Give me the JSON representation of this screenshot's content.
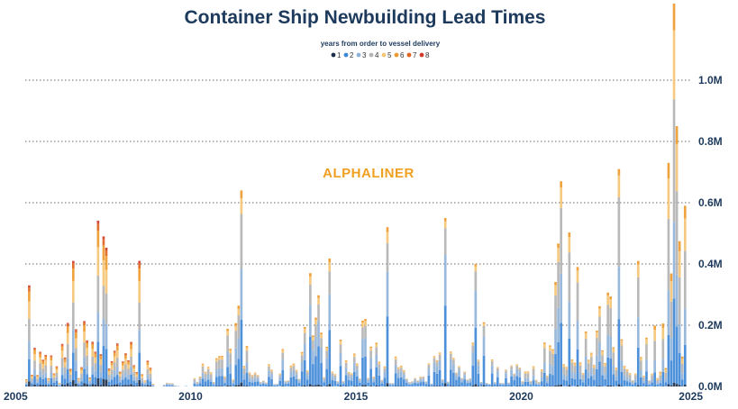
{
  "chart_data": {
    "type": "bar",
    "stacked": true,
    "title": "Container Ship Newbuilding Lead Times",
    "legend_title": "years from order to vessel delivery",
    "legend_position": "top-center",
    "watermark": "ALPHALINER",
    "xlim": [
      2005,
      2025
    ],
    "x_ticks": [
      "2005",
      "2010",
      "2015",
      "2020",
      "2025"
    ],
    "ylim": [
      0,
      1.2
    ],
    "y_unit": "M",
    "y_ticks": [
      "0.0M",
      "0.2M",
      "0.4M",
      "0.6M",
      "0.8M",
      "1.0M"
    ],
    "grid": "horizontal dotted",
    "series": [
      {
        "name": "1",
        "color": "#1a2e4a"
      },
      {
        "name": "2",
        "color": "#3f88d8"
      },
      {
        "name": "3",
        "color": "#8fb2d9"
      },
      {
        "name": "4",
        "color": "#b3b3b3"
      },
      {
        "name": "5",
        "color": "#f5c475"
      },
      {
        "name": "6",
        "color": "#ee9a2e"
      },
      {
        "name": "7",
        "color": "#e0651f"
      },
      {
        "name": "8",
        "color": "#d23b2a"
      }
    ],
    "notable_peaks": [
      {
        "x": 2005.1,
        "total": 0.33
      },
      {
        "x": 2006.4,
        "total": 0.41
      },
      {
        "x": 2007.3,
        "total": 0.49
      },
      {
        "x": 2008.4,
        "total": 0.41
      },
      {
        "x": 2011.5,
        "total": 0.64
      },
      {
        "x": 2013.6,
        "total": 0.37
      },
      {
        "x": 2015.9,
        "total": 0.52
      },
      {
        "x": 2017.7,
        "total": 0.55
      },
      {
        "x": 2018.6,
        "total": 0.4
      },
      {
        "x": 2021.2,
        "total": 0.67
      },
      {
        "x": 2022.9,
        "total": 0.71
      },
      {
        "x": 2023.5,
        "total": 0.41
      },
      {
        "x": 2024.6,
        "total": 1.25
      },
      {
        "x": 2024.7,
        "total": 0.85
      },
      {
        "x": 2024.4,
        "total": 0.73
      },
      {
        "x": 2024.95,
        "total": 0.59
      }
    ]
  }
}
